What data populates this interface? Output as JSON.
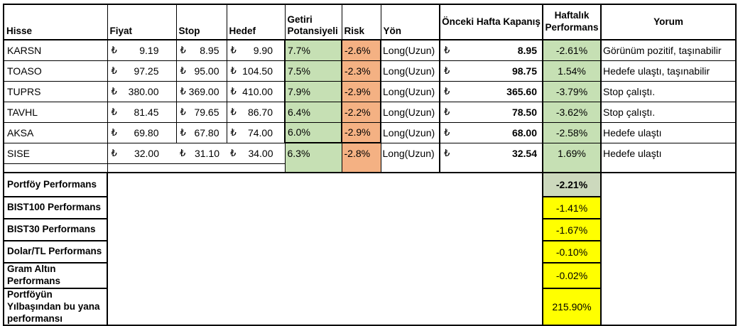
{
  "table": {
    "currency_symbol": "₺",
    "headers": {
      "hisse": "Hisse",
      "fiyat": "Fiyat",
      "stop": "Stop",
      "hedef": "Hedef",
      "getiri": "Getiri Potansiyeli",
      "risk": "Risk",
      "yon": "Yön",
      "onceki": "Önceki Hafta Kapanış",
      "haftalik": "Haftalık Performans",
      "yorum": "Yorum"
    },
    "stocks": [
      {
        "hisse": "KARSN",
        "fiyat": "9.19",
        "stop": "8.95",
        "hedef": "9.90",
        "getiri": "7.7%",
        "risk": "-2.6%",
        "yon": "Long(Uzun)",
        "onceki": "8.95",
        "haftalik": "-2.61%",
        "yorum": "Görünüm pozitif, taşınabilir"
      },
      {
        "hisse": "TOASO",
        "fiyat": "97.25",
        "stop": "95.00",
        "hedef": "104.50",
        "getiri": "7.5%",
        "risk": "-2.3%",
        "yon": "Long(Uzun)",
        "onceki": "98.75",
        "haftalik": "1.54%",
        "yorum": "Hedefe ulaştı, taşınabilir"
      },
      {
        "hisse": "TUPRS",
        "fiyat": "380.00",
        "stop": "369.00",
        "hedef": "410.00",
        "getiri": "7.9%",
        "risk": "-2.9%",
        "yon": "Long(Uzun)",
        "onceki": "365.60",
        "haftalik": "-3.79%",
        "yorum": "Stop çalıştı."
      },
      {
        "hisse": "TAVHL",
        "fiyat": "81.45",
        "stop": "79.65",
        "hedef": "86.70",
        "getiri": "6.4%",
        "risk": "-2.2%",
        "yon": "Long(Uzun)",
        "onceki": "78.50",
        "haftalik": "-3.62%",
        "yorum": "Stop çalıştı."
      },
      {
        "hisse": "AKSA",
        "fiyat": "69.80",
        "stop": "67.80",
        "hedef": "74.00",
        "getiri": "6.0%",
        "risk": "-2.9%",
        "yon": "Long(Uzun)",
        "onceki": "68.00",
        "haftalik": "-2.58%",
        "yorum": "Hedefe ulaştı"
      },
      {
        "hisse": "SISE",
        "fiyat": "32.00",
        "stop": "31.10",
        "hedef": "34.00",
        "getiri": "6.3%",
        "risk": "-2.8%",
        "yon": "Long(Uzun)",
        "onceki": "32.54",
        "haftalik": "1.69%",
        "yorum": "Hedefe ulaştı"
      }
    ],
    "summary": [
      {
        "label": "Portföy Performans",
        "value": "-2.21%",
        "highlight": "green"
      },
      {
        "label": "BIST100 Performans",
        "value": "-1.41%",
        "highlight": "yellow"
      },
      {
        "label": "BIST30 Performans",
        "value": "-1.67%",
        "highlight": "yellow"
      },
      {
        "label": "Dolar/TL Performans",
        "value": "-0.10%",
        "highlight": "yellow"
      },
      {
        "label": "Gram Altın Performans",
        "value": "-0.02%",
        "highlight": "yellow"
      },
      {
        "label": "Portföyün Yılbaşından bu yana performansı",
        "value": "215.90%",
        "highlight": "yellow"
      }
    ],
    "colors": {
      "positive_green": "#c6e0b4",
      "risk_orange": "#f4b183",
      "summary_green": "#ccd9bd",
      "highlight_yellow": "#ffff00"
    }
  }
}
